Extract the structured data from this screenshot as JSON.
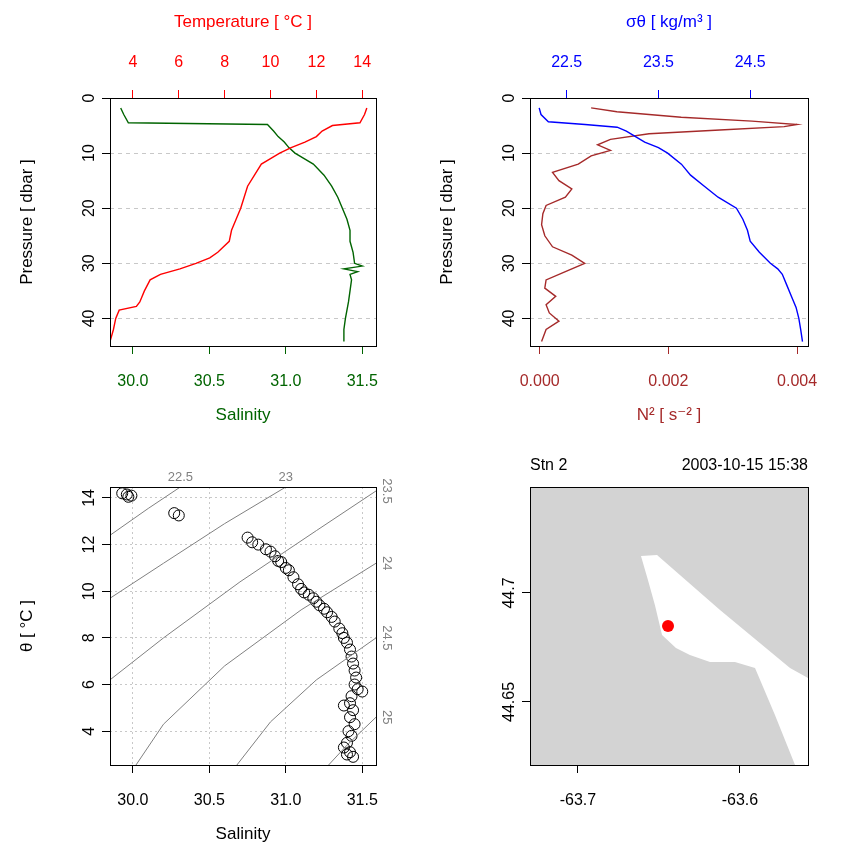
{
  "chart_data": [
    {
      "type": "line",
      "y_label": "Pressure [ dbar ]",
      "ylim": [
        45,
        0
      ],
      "yticks": [
        0,
        10,
        20,
        30,
        40
      ],
      "x_label": "Salinity",
      "xlim": [
        29.85,
        31.59
      ],
      "xticks": [
        {
          "value": 30,
          "label": "30.0"
        },
        30.5,
        {
          "value": 31,
          "label": "31.0"
        },
        31.5
      ],
      "x2_label": "Temperature [ °C ]",
      "x2lim": [
        3.0,
        14.6
      ],
      "x2ticks": [
        4,
        6,
        8,
        10,
        12,
        14
      ],
      "grid": true,
      "series": [
        {
          "color": "#ff0000",
          "axis": "x2",
          "x": [
            14.2,
            14.1,
            13.9,
            12.7,
            12.25,
            12.0,
            11.5,
            10.9,
            10.4,
            10.0,
            9.6,
            9.3,
            9.0,
            8.85,
            8.7,
            8.5,
            8.3,
            8.2,
            7.7,
            7.35,
            6.75,
            6.05,
            5.2,
            4.75,
            4.5,
            4.3,
            4.15,
            3.4,
            3.25,
            3.15,
            3.0
          ],
          "y": [
            1.8,
            3,
            4.5,
            5,
            6,
            7,
            8,
            9,
            10,
            11,
            12,
            14,
            16,
            18,
            20,
            22,
            24,
            26,
            28,
            29,
            30,
            31,
            32,
            33,
            35,
            37,
            37.8,
            38.5,
            40,
            42,
            44.2
          ]
        },
        {
          "color": "#006400",
          "x": [
            29.92,
            29.94,
            29.97,
            30.88,
            30.92,
            30.95,
            30.99,
            31.02,
            31.06,
            31.12,
            31.18,
            31.25,
            31.3,
            31.34,
            31.37,
            31.4,
            31.42,
            31.42,
            31.44,
            31.45,
            31.5,
            31.38,
            31.47,
            31.42,
            31.43,
            31.42,
            31.41,
            31.39,
            31.38,
            31.38
          ],
          "y": [
            1.8,
            3,
            4.5,
            4.8,
            6,
            7,
            8,
            9,
            10,
            11,
            12,
            14,
            16,
            18,
            20,
            22,
            24,
            26,
            28,
            30,
            30.5,
            31,
            31.5,
            32,
            33,
            35,
            37,
            40,
            42,
            44.2
          ]
        }
      ]
    },
    {
      "type": "line",
      "y_label": "Pressure [ dbar ]",
      "ylim": [
        45,
        0
      ],
      "yticks": [
        0,
        10,
        20,
        30,
        40
      ],
      "x_label": "N² [ s⁻² ]",
      "xlim": [
        -0.00015,
        0.00417
      ],
      "xticks": [
        {
          "value": 0,
          "label": "0.000"
        },
        {
          "value": 0.002,
          "label": "0.002"
        },
        {
          "value": 0.004,
          "label": "0.004"
        }
      ],
      "x2_label": "σθ [ kg/m³ ]",
      "x2lim": [
        22.1,
        25.13
      ],
      "x2ticks": [
        22.5,
        23.5,
        24.5
      ],
      "grid": true,
      "series": [
        {
          "color": "#0000ff",
          "axis": "x2",
          "x": [
            22.2,
            22.22,
            22.3,
            22.7,
            23.05,
            23.15,
            23.25,
            23.35,
            23.5,
            23.6,
            23.75,
            23.85,
            24.0,
            24.15,
            24.35,
            24.42,
            24.47,
            24.5,
            24.6,
            24.72,
            24.8,
            24.85,
            24.9,
            24.95,
            25.0,
            25.03,
            25.05,
            25.07
          ],
          "y": [
            1.8,
            3,
            4.3,
            4.8,
            5.3,
            6,
            7,
            8,
            9,
            10,
            12,
            14,
            16,
            18,
            20,
            22,
            24,
            26,
            28,
            30,
            31,
            32,
            34,
            36,
            38,
            40,
            42,
            44.2
          ]
        },
        {
          "color": "#a52a2a",
          "x": [
            0.0008,
            0.0012,
            0.0022,
            0.0033,
            0.004,
            0.0038,
            0.0028,
            0.0017,
            0.0011,
            0.0009,
            0.0011,
            0.0008,
            0.0006,
            0.0002,
            0.0003,
            0.0005,
            0.0004,
            0.0001,
            5e-05,
            3e-05,
            8e-05,
            0.0002,
            0.0005,
            0.0007,
            0.0004,
            0.0001,
            8e-05,
            0.00025,
            0.0001,
            0.00015,
            0.0003,
            0.0001,
            3e-05
          ],
          "y": [
            1.8,
            2.5,
            3.5,
            4.2,
            4.8,
            5.2,
            5.8,
            6.5,
            7.5,
            8.5,
            9.5,
            10.5,
            12,
            13.5,
            15,
            16.5,
            18,
            19.5,
            21,
            23,
            25,
            27,
            28.5,
            30,
            31.5,
            33,
            34.5,
            36,
            37.5,
            39,
            40.5,
            42,
            44.2
          ]
        }
      ]
    },
    {
      "type": "scatter",
      "x_label": "Salinity",
      "xlim": [
        29.85,
        31.59
      ],
      "xticks": [
        {
          "value": 30,
          "label": "30.0"
        },
        30.5,
        {
          "value": 31,
          "label": "31.0"
        },
        31.5
      ],
      "y_label": "θ [ °C ]",
      "ylim": [
        2.55,
        14.47
      ],
      "yticks": [
        4,
        6,
        8,
        10,
        12,
        14
      ],
      "grid": true,
      "series": [
        {
          "color": "#000000",
          "marker": "circle",
          "x": [
            29.93,
            29.96,
            29.99,
            29.97,
            30.27,
            30.3,
            30.75,
            30.78,
            30.82,
            30.87,
            30.9,
            30.93,
            30.95,
            30.97,
            31.0,
            31.02,
            31.05,
            31.08,
            31.1,
            31.12,
            31.15,
            31.18,
            31.2,
            31.22,
            31.25,
            31.27,
            31.3,
            31.32,
            31.35,
            31.37,
            31.38,
            31.4,
            31.42,
            31.43,
            31.44,
            31.45,
            31.46,
            31.45,
            31.47,
            31.5,
            31.43,
            31.42,
            31.38,
            31.44,
            31.42,
            31.45,
            31.41,
            31.43,
            31.4,
            31.38,
            31.42,
            31.4,
            31.44
          ],
          "y": [
            14.2,
            14.15,
            14.1,
            14.05,
            13.35,
            13.25,
            12.3,
            12.1,
            12.0,
            11.8,
            11.7,
            11.5,
            11.3,
            11.25,
            11.0,
            10.9,
            10.6,
            10.3,
            10.1,
            9.95,
            9.85,
            9.7,
            9.55,
            9.4,
            9.25,
            9.1,
            8.9,
            8.7,
            8.4,
            8.2,
            8.0,
            7.8,
            7.5,
            7.2,
            6.9,
            6.6,
            6.3,
            6.0,
            5.8,
            5.7,
            5.5,
            5.2,
            5.1,
            4.9,
            4.6,
            4.3,
            4.0,
            3.8,
            3.5,
            3.3,
            3.1,
            3.0,
            2.9
          ]
        }
      ],
      "contours": [
        {
          "level": 22.5,
          "color": "#808080",
          "x": [
            30.31,
            30.1,
            29.85
          ],
          "y": [
            14.47,
            13.55,
            12.4
          ]
        },
        {
          "level": 23,
          "color": "#808080",
          "x": [
            31.0,
            30.6,
            30.2,
            29.85
          ],
          "y": [
            14.47,
            12.9,
            11.2,
            9.7
          ]
        },
        {
          "level": 23.5,
          "color": "#808080",
          "x": [
            31.59,
            31.2,
            30.7,
            30.2,
            29.85
          ],
          "y": [
            14.3,
            12.6,
            10.4,
            8.0,
            6.2
          ]
        },
        {
          "level": 24,
          "color": "#808080",
          "x": [
            31.59,
            31.1,
            30.6,
            30.2,
            30.02
          ],
          "y": [
            11.2,
            9.2,
            6.8,
            4.3,
            2.55
          ]
        },
        {
          "level": 24.5,
          "color": "#808080",
          "x": [
            31.59,
            31.2,
            30.9,
            30.68
          ],
          "y": [
            8.0,
            6.2,
            4.4,
            2.55
          ]
        },
        {
          "level": 25,
          "color": "#808080",
          "x": [
            31.59,
            31.4,
            31.28
          ],
          "y": [
            4.6,
            3.4,
            2.55
          ]
        }
      ]
    },
    {
      "type": "map",
      "title": "Stn 2",
      "subtitle": "2003-10-15 15:38",
      "xlim": [
        -63.7296,
        -63.558
      ],
      "xticks": [
        -63.7,
        -63.6
      ],
      "ylim": [
        44.6211,
        44.7486
      ],
      "yticks": [
        44.65,
        44.7
      ],
      "grid": false,
      "color": "#d3d3d3",
      "water": {
        "color": "#ffffff",
        "x": [
          -63.6611,
          -63.6512,
          -63.6123,
          -63.5691,
          -63.558,
          -63.558,
          -63.566,
          -63.5784,
          -63.5907,
          -63.6031,
          -63.6185,
          -63.6309,
          -63.6395,
          -63.6481,
          -63.6525,
          -63.6568
        ],
        "y": [
          44.717,
          44.7174,
          44.6922,
          44.6656,
          44.661,
          44.6211,
          44.6211,
          44.644,
          44.6656,
          44.6683,
          44.6683,
          44.6716,
          44.6748,
          44.6807,
          44.6945,
          44.706
        ]
      },
      "station": {
        "x": -63.6444,
        "y": 44.6849,
        "color": "#ff0000",
        "marker": "circle"
      }
    }
  ]
}
